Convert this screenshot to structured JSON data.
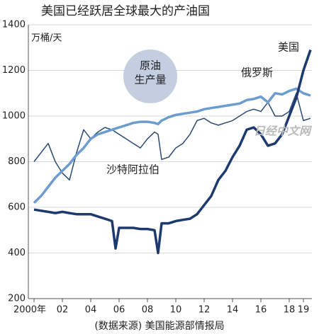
{
  "chart_data": {
    "type": "line",
    "title": "美国已经跃居全球最大的产油国",
    "y_unit": "万桶/天",
    "circle_label": [
      "原油",
      "生产量"
    ],
    "source": "(数据来源) 美国能源部情报局",
    "watermark": "日经中文网",
    "x": [
      2000,
      2000.5,
      2001,
      2001.5,
      2002,
      2002.5,
      2003,
      2003.5,
      2004,
      2004.5,
      2005,
      2005.5,
      2005.75,
      2006,
      2006.5,
      2007,
      2007.5,
      2008,
      2008.5,
      2008.75,
      2009,
      2009.5,
      2010,
      2010.5,
      2011,
      2011.5,
      2012,
      2012.5,
      2013,
      2013.5,
      2014,
      2014.5,
      2015,
      2015.5,
      2016,
      2016.5,
      2017,
      2017.5,
      2018,
      2018.5,
      2019,
      2019.5
    ],
    "series": [
      {
        "name": "沙特阿拉伯",
        "color": "#2a4a72",
        "width": 1.5,
        "values": [
          800,
          840,
          880,
          800,
          750,
          720,
          840,
          940,
          900,
          930,
          950,
          940,
          930,
          920,
          900,
          880,
          860,
          900,
          930,
          920,
          810,
          820,
          860,
          880,
          920,
          980,
          990,
          970,
          960,
          970,
          980,
          1000,
          1020,
          1030,
          1020,
          1060,
          1000,
          1000,
          1020,
          1100,
          980,
          990
        ]
      },
      {
        "name": "俄罗斯",
        "color": "#6d9ccf",
        "width": 3.5,
        "values": [
          620,
          650,
          690,
          730,
          760,
          790,
          830,
          860,
          900,
          920,
          930,
          940,
          945,
          950,
          960,
          970,
          975,
          975,
          970,
          965,
          980,
          995,
          1005,
          1010,
          1015,
          1020,
          1030,
          1035,
          1040,
          1045,
          1050,
          1055,
          1070,
          1075,
          1085,
          1060,
          1100,
          1095,
          1110,
          1120,
          1100,
          1090
        ]
      },
      {
        "name": "美国",
        "color": "#1c3a6e",
        "width": 3.5,
        "values": [
          590,
          585,
          580,
          575,
          580,
          575,
          570,
          570,
          570,
          560,
          550,
          540,
          420,
          510,
          510,
          510,
          505,
          505,
          500,
          400,
          530,
          530,
          540,
          545,
          550,
          570,
          610,
          650,
          720,
          760,
          820,
          870,
          940,
          950,
          920,
          870,
          880,
          920,
          1000,
          1080,
          1200,
          1290
        ]
      }
    ],
    "xlim": [
      1999.6,
      2019.6
    ],
    "xticks": [
      {
        "value": 2000,
        "label": "2000年"
      },
      {
        "value": 2002,
        "label": "02"
      },
      {
        "value": 2004,
        "label": "04"
      },
      {
        "value": 2006,
        "label": "06"
      },
      {
        "value": 2008,
        "label": "08"
      },
      {
        "value": 2010,
        "label": "10"
      },
      {
        "value": 2012,
        "label": "12"
      },
      {
        "value": 2014,
        "label": "14"
      },
      {
        "value": 2016,
        "label": "16"
      },
      {
        "value": 2018,
        "label": "18"
      },
      {
        "value": 2019,
        "label": "19"
      }
    ],
    "ylim": [
      200,
      1400
    ],
    "yticks": [
      200,
      400,
      600,
      800,
      1000,
      1200,
      1400
    ],
    "grid": true
  }
}
